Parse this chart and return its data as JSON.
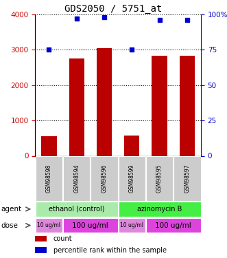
{
  "title": "GDS2050 / 5751_at",
  "samples": [
    "GSM98598",
    "GSM98594",
    "GSM98596",
    "GSM98599",
    "GSM98595",
    "GSM98597"
  ],
  "counts": [
    550,
    2750,
    3050,
    580,
    2820,
    2820
  ],
  "percentiles": [
    75,
    97,
    98,
    75,
    96,
    96
  ],
  "ylim_left": [
    0,
    4000
  ],
  "ylim_right": [
    0,
    100
  ],
  "yticks_left": [
    0,
    1000,
    2000,
    3000,
    4000
  ],
  "yticks_right": [
    0,
    25,
    50,
    75,
    100
  ],
  "right_tick_labels": [
    "0",
    "25",
    "50",
    "75",
    "100%"
  ],
  "bar_color": "#bb0000",
  "dot_color": "#0000cc",
  "agent_groups": [
    {
      "label": "ethanol (control)",
      "start": 0,
      "end": 3,
      "color": "#aaeaaa"
    },
    {
      "label": "azinomycin B",
      "start": 3,
      "end": 6,
      "color": "#44ee44"
    }
  ],
  "dose_groups": [
    {
      "label": "10 ug/ml",
      "start": 0,
      "end": 1,
      "color": "#dd88dd",
      "fontsize": 5.5
    },
    {
      "label": "100 ug/ml",
      "start": 1,
      "end": 3,
      "color": "#dd44dd",
      "fontsize": 7.5
    },
    {
      "label": "10 ug/ml",
      "start": 3,
      "end": 4,
      "color": "#dd88dd",
      "fontsize": 5.5
    },
    {
      "label": "100 ug/ml",
      "start": 4,
      "end": 6,
      "color": "#dd44dd",
      "fontsize": 7.5
    }
  ],
  "legend_count_label": "count",
  "legend_pct_label": "percentile rank within the sample",
  "tick_color_left": "#cc0000",
  "tick_color_right": "#0000cc",
  "sample_box_color": "#cccccc",
  "title_fontsize": 10,
  "bar_width": 0.55
}
